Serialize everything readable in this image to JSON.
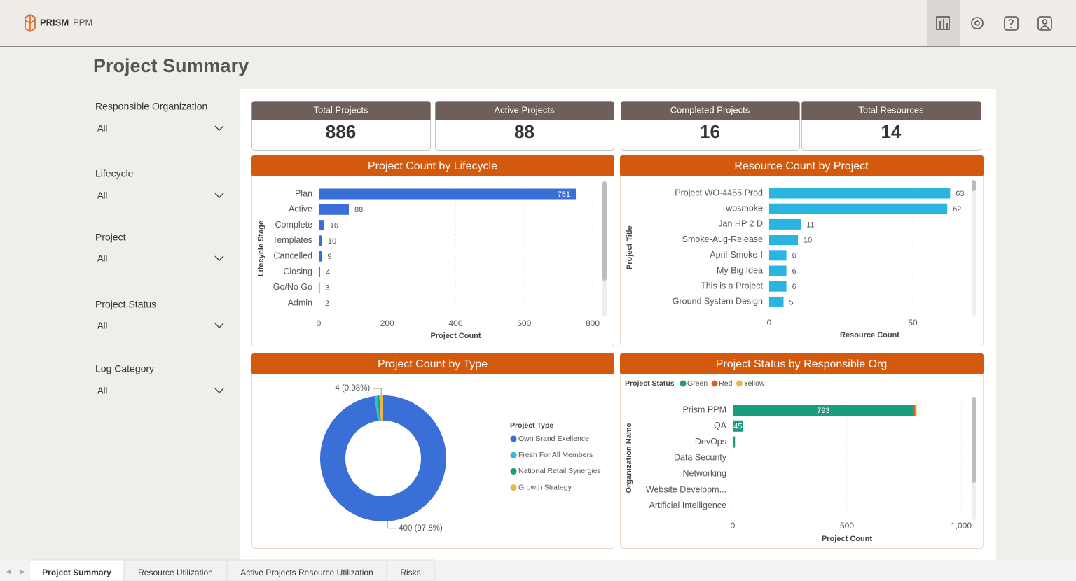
{
  "header": {
    "brand": "PRISM",
    "product": "PPM"
  },
  "page_title": "Project Summary",
  "filters": [
    {
      "label": "Responsible Organization",
      "value": "All"
    },
    {
      "label": "Lifecycle",
      "value": "All"
    },
    {
      "label": "Project",
      "value": "All"
    },
    {
      "label": "Project Status",
      "value": "All"
    },
    {
      "label": "Log Category",
      "value": "All"
    }
  ],
  "kpis": [
    {
      "label": "Total Projects",
      "value": 886
    },
    {
      "label": "Active Projects",
      "value": 88
    },
    {
      "label": "Completed Projects",
      "value": 16
    },
    {
      "label": "Total Resources",
      "value": 14
    }
  ],
  "tabs": [
    "Project Summary",
    "Resource Utilization",
    "Active Projects Resource Utilization",
    "Risks"
  ],
  "chart_data": [
    {
      "type": "bar",
      "orientation": "horizontal",
      "title": "Project Count by Lifecycle",
      "x_label": "Project Count",
      "y_label": "Lifecycle Stage",
      "categories": [
        "Plan",
        "Active",
        "Complete",
        "Templates",
        "Cancelled",
        "Closing",
        "Go/No Go",
        "Admin"
      ],
      "values": [
        751,
        88,
        16,
        10,
        9,
        4,
        3,
        2
      ],
      "color": "#3a6fd8",
      "xlim": [
        0,
        800
      ],
      "xticks": [
        0,
        200,
        400,
        600,
        800
      ],
      "grid": true
    },
    {
      "type": "bar",
      "orientation": "horizontal",
      "title": "Resource Count by Project",
      "x_label": "Resource Count",
      "y_label": "Project Title",
      "categories": [
        "Project WO-4455 Prod",
        "wosmoke",
        "Jan HP 2 D",
        "Smoke-Aug-Release",
        "April-Smoke-I",
        "My Big Idea",
        "This is a Project",
        "Ground System Design"
      ],
      "values": [
        63,
        62,
        11,
        10,
        6,
        6,
        6,
        5
      ],
      "color": "#29b5e0",
      "xlim": [
        0,
        70
      ],
      "xticks": [
        0,
        50
      ],
      "grid": true
    },
    {
      "type": "pie",
      "title": "Project Count by Type",
      "legend_title": "Project Type",
      "categories": [
        "Own Brand Exellence",
        "Fresh For All Members",
        "National Retail Synergies",
        "Growth Strategy"
      ],
      "values": [
        400,
        3,
        2,
        4
      ],
      "value_labels": [
        "400 (97.8%)",
        null,
        null,
        "4 (0.98%)"
      ],
      "colors": [
        "#3a6fd8",
        "#2ebbe0",
        "#1a9c80",
        "#e8b84b"
      ],
      "legend": "right"
    },
    {
      "type": "bar",
      "orientation": "horizontal",
      "stacked": true,
      "title": "Project Status by Responsible Org",
      "legend_title": "Project Status",
      "legend": "top-left",
      "x_label": "Project Count",
      "y_label": "Organization Name",
      "categories": [
        "Prism PPM",
        "QA",
        "DevOps",
        "Data Security",
        "Networking",
        "Website Developm...",
        "Artificial Intelligence"
      ],
      "series": [
        {
          "name": "Green",
          "color": "#1a9c80",
          "values": [
            793,
            45,
            10,
            2,
            2,
            2,
            1
          ]
        },
        {
          "name": "Red",
          "color": "#e0621a",
          "values": [
            6,
            0,
            0,
            0,
            0,
            0,
            0
          ]
        },
        {
          "name": "Yellow",
          "color": "#e8b84b",
          "values": [
            6,
            0,
            0,
            0,
            0,
            0,
            0
          ]
        }
      ],
      "xlim": [
        0,
        1000
      ],
      "xticks": [
        0,
        500,
        {
          "value": 1000,
          "label": "1,000"
        }
      ],
      "grid": true
    }
  ]
}
